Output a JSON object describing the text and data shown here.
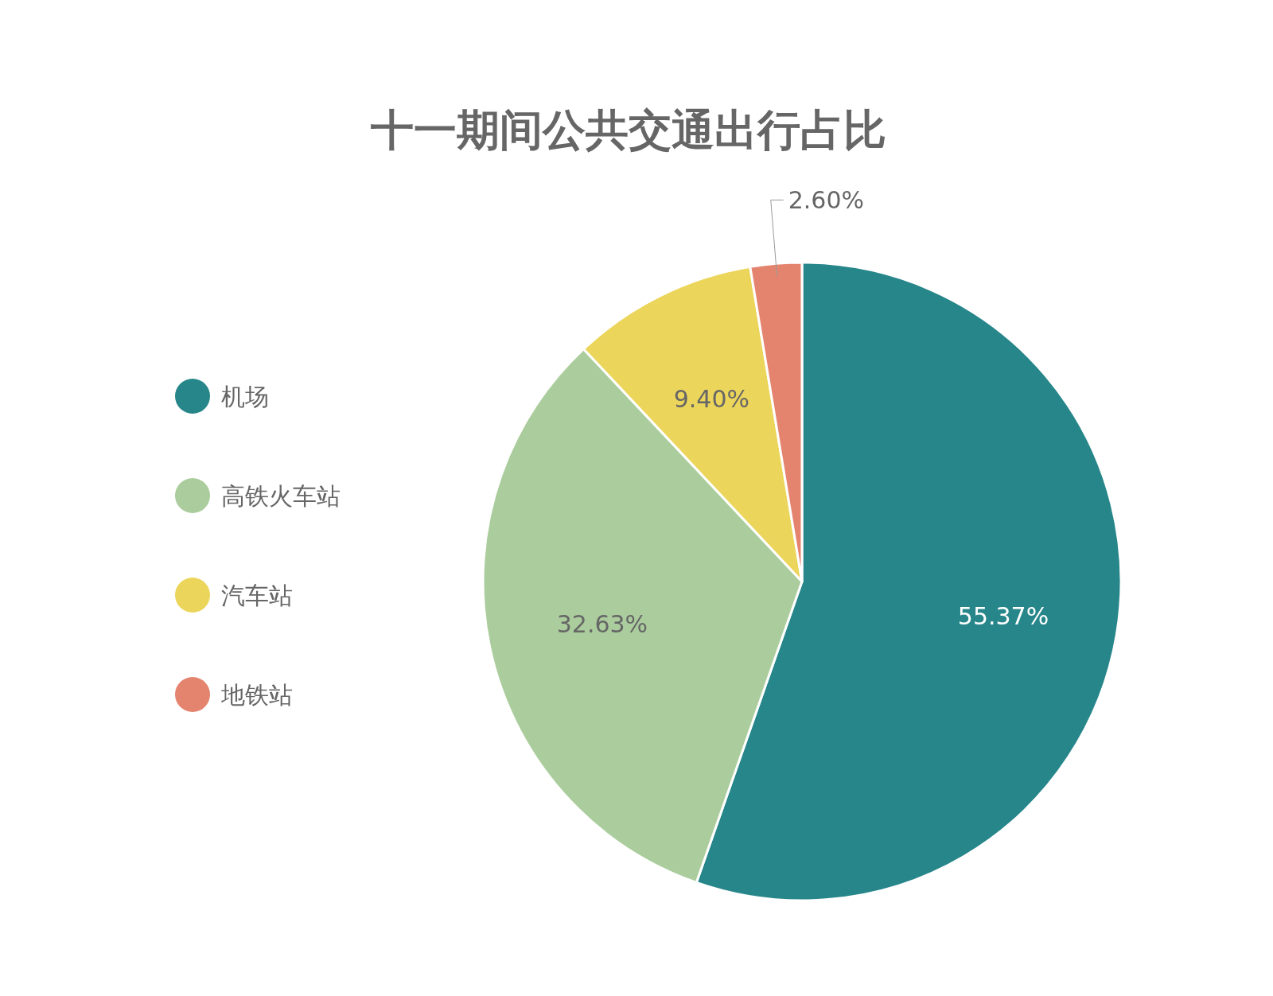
{
  "chart_data": {
    "type": "pie",
    "title": "十一期间公共交通出行占比",
    "categories": [
      "机场",
      "高铁火车站",
      "汽车站",
      "地铁站"
    ],
    "values": [
      55.37,
      32.63,
      9.4,
      2.6
    ],
    "colors": [
      "#27868a",
      "#abcd9d",
      "#ecd55b",
      "#e4846e"
    ],
    "value_labels": [
      "55.37%",
      "32.63%",
      "9.40%",
      "2.60%"
    ],
    "legend": "left"
  }
}
